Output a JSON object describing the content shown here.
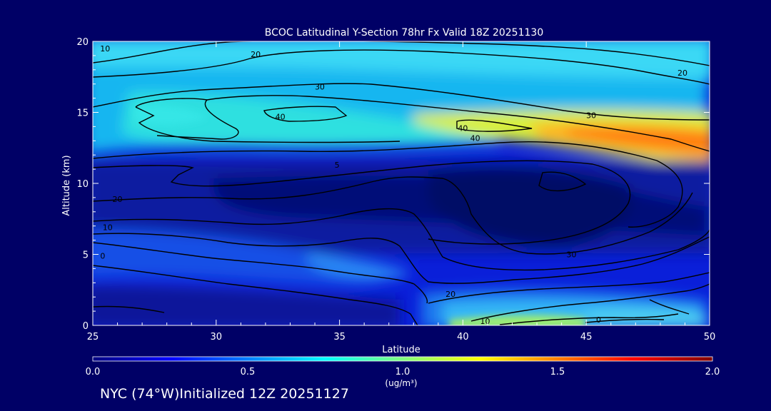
{
  "chart_data": {
    "type": "heatmap",
    "title": "BCOC Latitudinal Y-Section 78hr  Fx Valid 18Z 20251130",
    "xlabel": "Latitude",
    "ylabel": "Altitude (km)",
    "xlim": [
      25,
      50
    ],
    "ylim": [
      0,
      20
    ],
    "x_ticks": [
      25,
      30,
      35,
      40,
      45,
      50
    ],
    "y_ticks": [
      0,
      5,
      10,
      15,
      20
    ],
    "colorbar": {
      "min": 0.0,
      "max": 2.0,
      "ticks": [
        "0.0",
        "0.5",
        "1.0",
        "1.5",
        "2.0"
      ],
      "unit": "(ug/m³)",
      "colors": [
        "#000080",
        "#0000ff",
        "#0080ff",
        "#00ffff",
        "#80ff80",
        "#ffff00",
        "#ff8000",
        "#ff0000",
        "#800000"
      ]
    },
    "contour_labels": [
      {
        "text": "10",
        "x": 25.5,
        "y": 19.5
      },
      {
        "text": "20",
        "x": 31.6,
        "y": 19.1
      },
      {
        "text": "20",
        "x": 48.9,
        "y": 17.8
      },
      {
        "text": "30",
        "x": 34.2,
        "y": 16.8
      },
      {
        "text": "40",
        "x": 32.6,
        "y": 14.7
      },
      {
        "text": "30",
        "x": 45.2,
        "y": 14.8
      },
      {
        "text": "40",
        "x": 40.0,
        "y": 13.9
      },
      {
        "text": "40",
        "x": 40.5,
        "y": 13.2
      },
      {
        "text": "5",
        "x": 34.9,
        "y": 11.3
      },
      {
        "text": "20",
        "x": 26.0,
        "y": 8.9
      },
      {
        "text": "10",
        "x": 25.6,
        "y": 6.9
      },
      {
        "text": "30",
        "x": 44.4,
        "y": 5.0
      },
      {
        "text": "0",
        "x": 25.4,
        "y": 4.9
      },
      {
        "text": "20",
        "x": 39.5,
        "y": 2.2
      },
      {
        "text": "10",
        "x": 40.9,
        "y": 0.3
      },
      {
        "text": "0",
        "x": 45.5,
        "y": 0.4
      }
    ]
  },
  "footer": "NYC (74°W)Initialized 12Z 20251127"
}
